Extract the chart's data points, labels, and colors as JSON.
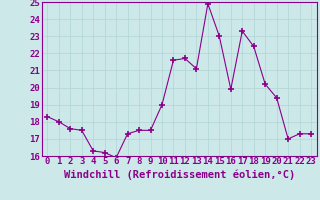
{
  "x": [
    0,
    1,
    2,
    3,
    4,
    5,
    6,
    7,
    8,
    9,
    10,
    11,
    12,
    13,
    14,
    15,
    16,
    17,
    18,
    19,
    20,
    21,
    22,
    23
  ],
  "y": [
    18.3,
    18.0,
    17.6,
    17.5,
    16.3,
    16.2,
    15.9,
    17.3,
    17.5,
    17.5,
    19.0,
    21.6,
    21.7,
    21.1,
    24.9,
    23.0,
    19.9,
    23.3,
    22.4,
    20.2,
    19.4,
    17.0,
    17.3,
    17.3
  ],
  "line_color": "#8b008b",
  "marker": "+",
  "marker_color": "#8b008b",
  "bg_color": "#cce8e8",
  "grid_color": "#b0d4d4",
  "xlabel": "Windchill (Refroidissement éolien,°C)",
  "tick_color": "#8b008b",
  "ylim": [
    16,
    25
  ],
  "xlim": [
    -0.5,
    23.5
  ],
  "yticks": [
    16,
    17,
    18,
    19,
    20,
    21,
    22,
    23,
    24,
    25
  ],
  "xticks": [
    0,
    1,
    2,
    3,
    4,
    5,
    6,
    7,
    8,
    9,
    10,
    11,
    12,
    13,
    14,
    15,
    16,
    17,
    18,
    19,
    20,
    21,
    22,
    23
  ],
  "spine_color": "#8b008b",
  "tick_fontsize": 6.5,
  "xlabel_fontsize": 7.5
}
